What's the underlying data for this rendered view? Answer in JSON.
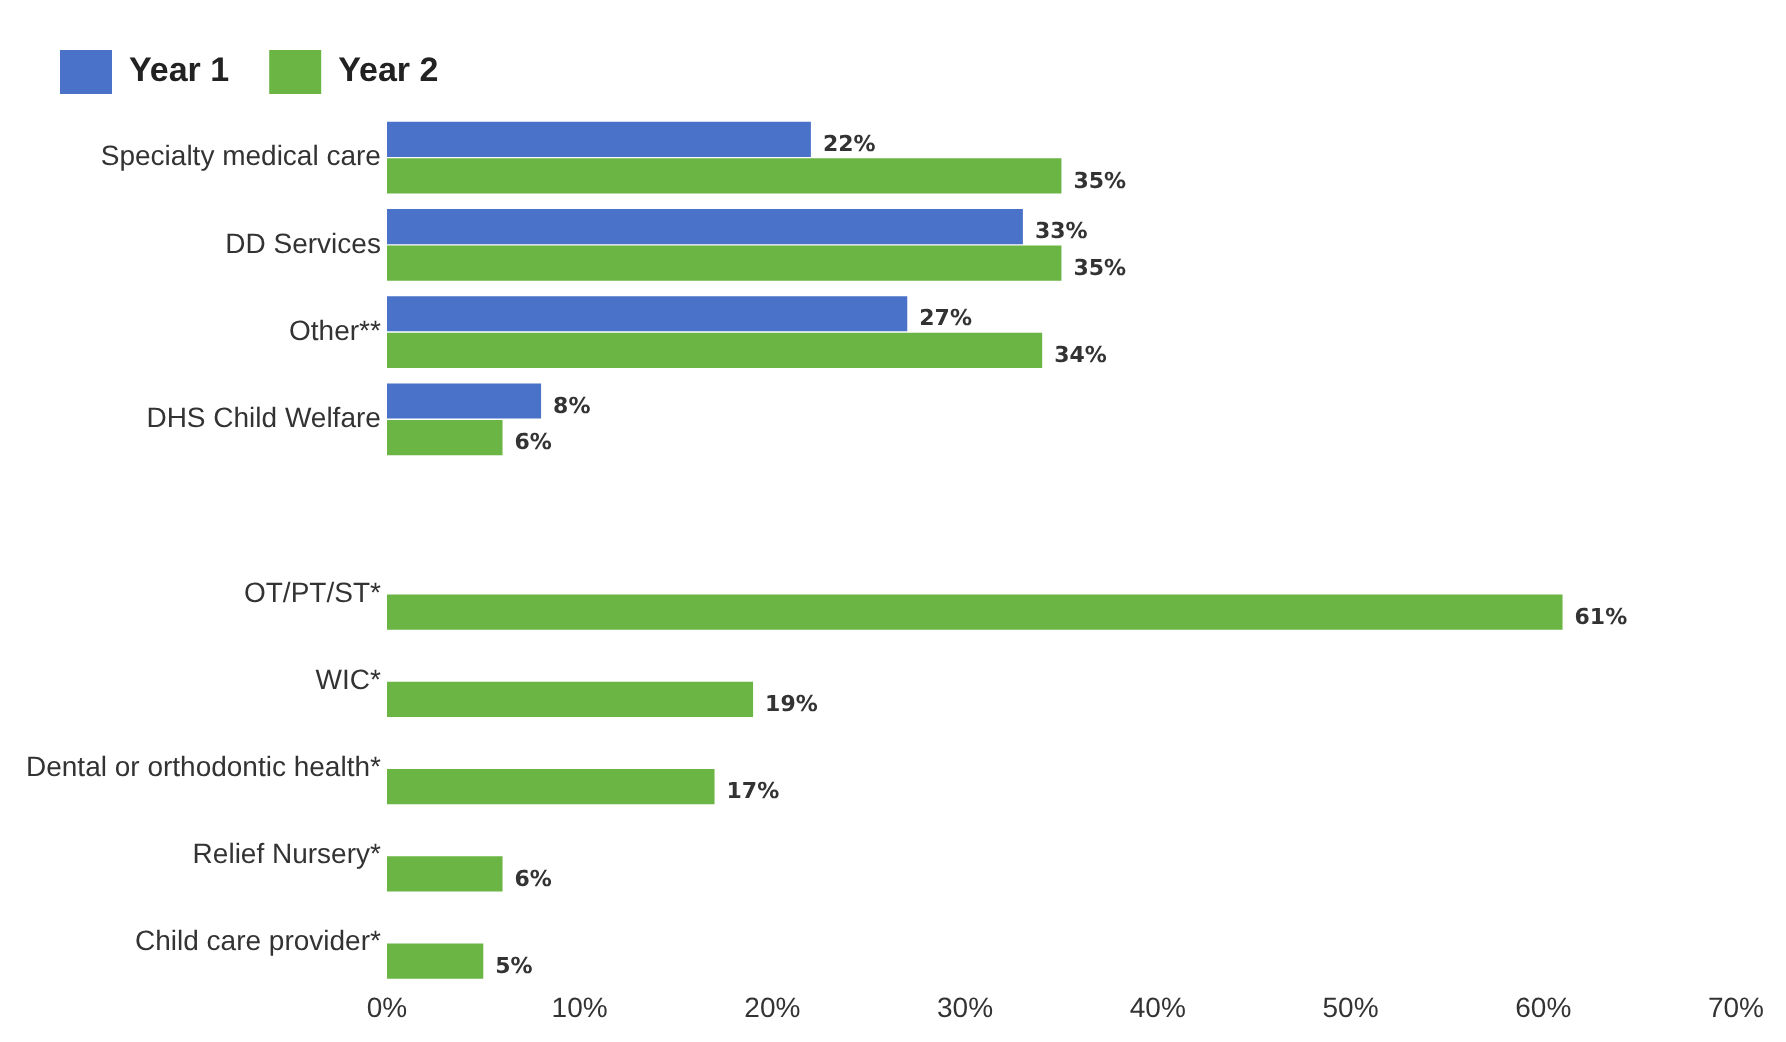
{
  "chart_data": {
    "type": "bar",
    "orientation": "horizontal",
    "categories": [
      "Specialty medical care",
      "DD Services",
      "Other**",
      "DHS Child Welfare",
      null,
      "OT/PT/ST*",
      "WIC*",
      "Dental or orthodontic health*",
      "Relief Nursery*",
      "Child care provider*"
    ],
    "series": [
      {
        "name": "Year 1",
        "color": "#4a72c9",
        "values": [
          22,
          33,
          27,
          8,
          null,
          null,
          null,
          null,
          null,
          null
        ],
        "value_labels": [
          "22%",
          "33%",
          "27%",
          "8%",
          null,
          null,
          null,
          null,
          null,
          null
        ]
      },
      {
        "name": "Year 2",
        "color": "#6bb545",
        "values": [
          35,
          35,
          34,
          6,
          null,
          61,
          19,
          17,
          6,
          5
        ],
        "value_labels": [
          "35%",
          "35%",
          "34%",
          "6%",
          null,
          "61%",
          "19%",
          "17%",
          "6%",
          "5%"
        ]
      }
    ],
    "xlim": [
      0,
      70
    ],
    "xticks": [
      {
        "value": 0,
        "label": "0%"
      },
      {
        "value": 10,
        "label": "10%"
      },
      {
        "value": 20,
        "label": "20%"
      },
      {
        "value": 30,
        "label": "30%"
      },
      {
        "value": 40,
        "label": "40%"
      },
      {
        "value": 50,
        "label": "50%"
      },
      {
        "value": 60,
        "label": "60%"
      },
      {
        "value": 70,
        "label": "70%"
      }
    ],
    "grid": false,
    "legend": "top left"
  }
}
